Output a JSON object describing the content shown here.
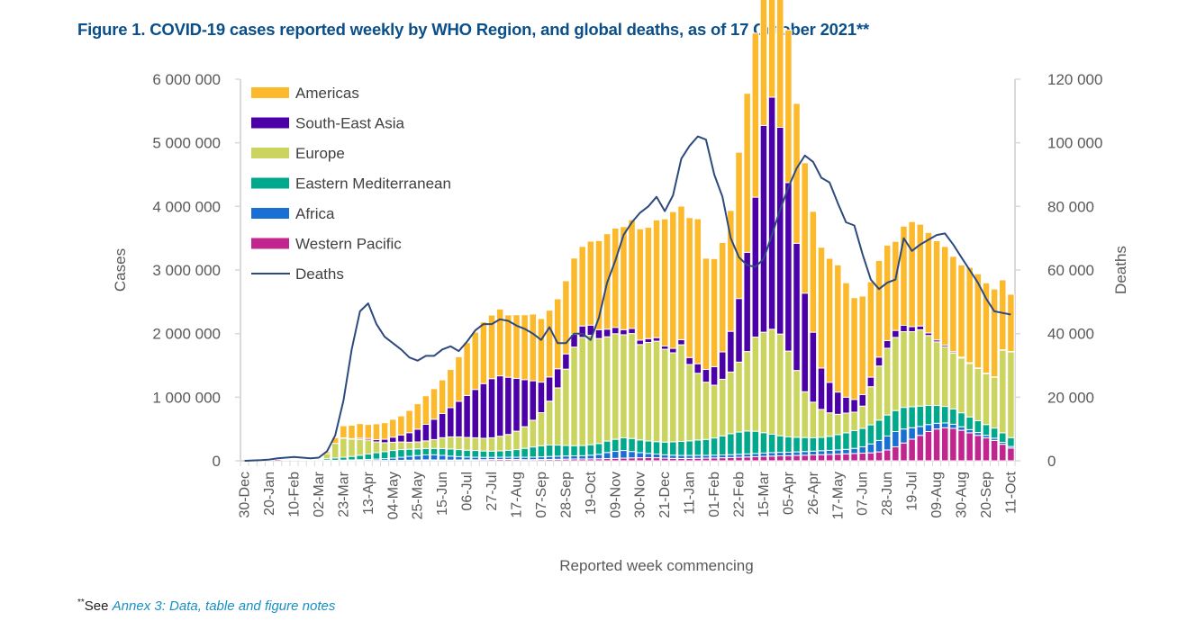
{
  "chart_data": {
    "type": "bar",
    "stacked": true,
    "title": "Figure 1. COVID-19 cases reported weekly by WHO Region, and global deaths, as of 17 October 2021**",
    "xlabel": "Reported week commencing",
    "ylabel": "Cases",
    "y2label": "Deaths",
    "ylim": [
      0,
      6000000
    ],
    "y2lim": [
      0,
      120000
    ],
    "yticks": [
      "0",
      "1 000 000",
      "2 000 000",
      "3 000 000",
      "4 000 000",
      "5 000 000",
      "6 000 000"
    ],
    "y2ticks": [
      "0",
      "20 000",
      "40 000",
      "60 000",
      "80 000",
      "100 000",
      "120 000"
    ],
    "grid": false,
    "legend_position": "top-left",
    "x_start": "30-Dec-2019",
    "x_interval": "weekly",
    "tick_labels": [
      "30-Dec",
      "20-Jan",
      "10-Feb",
      "02-Mar",
      "23-Mar",
      "13-Apr",
      "04-May",
      "25-May",
      "15-Jun",
      "06-Jul",
      "27-Jul",
      "17-Aug",
      "07-Sep",
      "28-Sep",
      "19-Oct",
      "09-Nov",
      "30-Nov",
      "21-Dec",
      "11-Jan",
      "01-Feb",
      "22-Feb",
      "15-Mar",
      "05-Apr",
      "26-Apr",
      "17-May",
      "07-Jun",
      "28-Jun",
      "19-Jul",
      "09-Aug",
      "30-Aug",
      "20-Sep",
      "11-Oct"
    ],
    "tick_every_n_weeks": 3,
    "units_note": "bar series values in thousands of cases; deaths values in thousands",
    "series": [
      {
        "name": "Western Pacific",
        "color": "#c0268e",
        "values": [
          0,
          1,
          3,
          14,
          20,
          14,
          8,
          6,
          4,
          3,
          3,
          3,
          3,
          4,
          4,
          4,
          5,
          6,
          6,
          8,
          10,
          12,
          15,
          14,
          13,
          12,
          14,
          15,
          16,
          18,
          20,
          22,
          22,
          20,
          18,
          18,
          20,
          22,
          24,
          26,
          28,
          28,
          30,
          32,
          35,
          38,
          42,
          46,
          48,
          50,
          48,
          42,
          38,
          36,
          38,
          40,
          42,
          45,
          48,
          52,
          56,
          60,
          65,
          70,
          74,
          78,
          80,
          84,
          88,
          92,
          96,
          100,
          105,
          110,
          115,
          120,
          125,
          140,
          170,
          220,
          280,
          340,
          400,
          460,
          500,
          520,
          510,
          480,
          440,
          400,
          360,
          320,
          260,
          200
        ]
      },
      {
        "name": "Africa",
        "color": "#1a6fd4",
        "values": [
          0,
          0,
          0,
          0,
          0,
          0,
          0,
          1,
          2,
          3,
          4,
          6,
          8,
          10,
          13,
          18,
          22,
          28,
          36,
          48,
          60,
          70,
          78,
          80,
          72,
          62,
          52,
          44,
          40,
          36,
          34,
          34,
          34,
          36,
          38,
          40,
          42,
          46,
          48,
          50,
          50,
          52,
          58,
          70,
          95,
          110,
          120,
          100,
          80,
          66,
          58,
          52,
          50,
          48,
          46,
          46,
          44,
          44,
          44,
          44,
          46,
          48,
          50,
          52,
          54,
          55,
          55,
          56,
          58,
          60,
          62,
          64,
          66,
          70,
          80,
          100,
          140,
          180,
          220,
          240,
          220,
          180,
          140,
          110,
          90,
          75,
          65,
          55,
          50,
          45,
          40,
          35,
          30,
          25
        ]
      },
      {
        "name": "Eastern Mediterranean",
        "color": "#00a88c",
        "values": [
          0,
          0,
          0,
          0,
          0,
          0,
          1,
          3,
          8,
          15,
          25,
          35,
          45,
          55,
          70,
          85,
          100,
          110,
          120,
          120,
          112,
          105,
          100,
          100,
          108,
          112,
          110,
          108,
          106,
          100,
          98,
          100,
          108,
          120,
          140,
          160,
          175,
          180,
          175,
          165,
          160,
          160,
          165,
          170,
          180,
          190,
          200,
          205,
          200,
          195,
          195,
          200,
          210,
          220,
          230,
          240,
          250,
          270,
          300,
          330,
          350,
          360,
          350,
          320,
          290,
          260,
          240,
          230,
          220,
          210,
          210,
          220,
          240,
          260,
          280,
          290,
          300,
          320,
          330,
          330,
          340,
          330,
          320,
          300,
          280,
          260,
          240,
          220,
          200,
          185,
          170,
          160,
          150,
          140
        ]
      },
      {
        "name": "Europe",
        "color": "#cad45e",
        "values": [
          0,
          0,
          0,
          0,
          0,
          0,
          0,
          0,
          2,
          10,
          80,
          230,
          300,
          270,
          250,
          220,
          170,
          140,
          130,
          120,
          110,
          110,
          120,
          140,
          170,
          190,
          200,
          200,
          200,
          200,
          210,
          230,
          250,
          290,
          340,
          420,
          520,
          690,
          900,
          1200,
          1550,
          1700,
          1720,
          1650,
          1640,
          1660,
          1620,
          1650,
          1500,
          1550,
          1580,
          1460,
          1400,
          1520,
          1200,
          1050,
          900,
          830,
          890,
          970,
          1100,
          1250,
          1480,
          1580,
          1650,
          1600,
          1350,
          1050,
          720,
          560,
          440,
          370,
          320,
          310,
          290,
          350,
          600,
          850,
          1050,
          1150,
          1190,
          1180,
          1200,
          1100,
          1000,
          940,
          880,
          860,
          840,
          820,
          800,
          800,
          1300,
          1350
        ]
      },
      {
        "name": "South-East Asia",
        "color": "#4b00a8",
        "values": [
          0,
          0,
          0,
          0,
          0,
          0,
          0,
          0,
          0,
          0,
          0,
          0,
          5,
          10,
          18,
          24,
          35,
          55,
          80,
          110,
          150,
          200,
          260,
          320,
          380,
          460,
          560,
          660,
          760,
          860,
          930,
          950,
          900,
          830,
          740,
          620,
          480,
          380,
          300,
          240,
          200,
          180,
          160,
          140,
          120,
          100,
          80,
          80,
          70,
          60,
          55,
          50,
          70,
          80,
          110,
          150,
          200,
          290,
          430,
          640,
          1000,
          1560,
          2200,
          3250,
          3650,
          3250,
          2650,
          2000,
          1550,
          1100,
          650,
          480,
          350,
          250,
          200,
          180,
          150,
          140,
          120,
          110,
          100,
          80,
          60,
          40,
          30,
          25,
          20,
          15,
          12,
          10,
          8,
          6,
          5,
          4
        ]
      },
      {
        "name": "Americas",
        "color": "#fdb92c",
        "values": [
          0,
          0,
          0,
          0,
          0,
          0,
          0,
          0,
          3,
          8,
          30,
          90,
          190,
          210,
          230,
          220,
          250,
          260,
          280,
          300,
          350,
          400,
          450,
          480,
          530,
          600,
          700,
          830,
          900,
          970,
          1000,
          1050,
          980,
          1000,
          1020,
          1050,
          1000,
          1050,
          1100,
          1150,
          1200,
          1250,
          1320,
          1400,
          1500,
          1560,
          1620,
          1710,
          1750,
          1750,
          1850,
          2000,
          2150,
          2100,
          2200,
          2280,
          1750,
          1700,
          1720,
          1900,
          2300,
          2500,
          2580,
          2700,
          2700,
          2600,
          2400,
          2200,
          2050,
          1900,
          1900,
          1950,
          2000,
          1800,
          1600,
          1550,
          1500,
          1520,
          1500,
          1400,
          1560,
          1650,
          1600,
          1580,
          1560,
          1550,
          1500,
          1450,
          1500,
          1480,
          1420,
          1380,
          1100,
          900
        ]
      }
    ],
    "deaths": {
      "name": "Deaths",
      "color": "#2e4a7d",
      "axis": "right",
      "values": [
        0,
        0.1,
        0.2,
        0.4,
        0.8,
        1.0,
        1.2,
        1.0,
        0.8,
        1.0,
        3.0,
        8.0,
        19.0,
        35.0,
        47.0,
        49.5,
        43.0,
        39.0,
        37.0,
        35.0,
        32.5,
        31.5,
        33.0,
        33.0,
        35.0,
        36.0,
        34.5,
        37.5,
        41.0,
        43.0,
        43.0,
        44.5,
        44.0,
        42.5,
        41.5,
        40.0,
        38.0,
        42.0,
        37.0,
        37.0,
        40.0,
        40.0,
        38.0,
        45.0,
        56.0,
        63.0,
        71.0,
        75.0,
        78.0,
        80.0,
        83.0,
        78.5,
        83.5,
        95.0,
        99.0,
        102.0,
        101.0,
        90.0,
        83.0,
        70.0,
        64.0,
        61.5,
        61.0,
        63.5,
        71.0,
        79.0,
        86.0,
        92.0,
        96.0,
        94.0,
        89.0,
        87.5,
        81.0,
        75.0,
        74.0,
        65.0,
        57.0,
        54.0,
        56.0,
        57.0,
        70.0,
        66.0,
        68.0,
        69.5,
        71.0,
        71.5,
        68.0,
        64.0,
        60.0,
        56.0,
        51.0,
        47.0,
        46.5,
        46.0
      ]
    }
  },
  "legend": [
    {
      "label": "Americas",
      "color": "#fdb92c",
      "kind": "bar"
    },
    {
      "label": "South-East Asia",
      "color": "#4b00a8",
      "kind": "bar"
    },
    {
      "label": "Europe",
      "color": "#cad45e",
      "kind": "bar"
    },
    {
      "label": "Eastern Mediterranean",
      "color": "#00a88c",
      "kind": "bar"
    },
    {
      "label": "Africa",
      "color": "#1a6fd4",
      "kind": "bar"
    },
    {
      "label": "Western Pacific",
      "color": "#c0268e",
      "kind": "bar"
    },
    {
      "label": "Deaths",
      "color": "#2e4a7d",
      "kind": "line"
    }
  ],
  "footnote": {
    "marker": "**",
    "prefix": "See ",
    "link_text": "Annex 3: Data, table and figure notes"
  }
}
